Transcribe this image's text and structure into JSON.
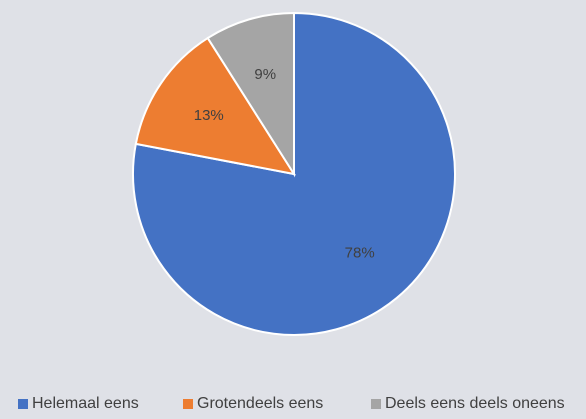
{
  "chart_data": {
    "type": "pie",
    "title": "",
    "categories": [
      "Helemaal eens",
      "Grotendeels eens",
      "Deels eens deels oneens"
    ],
    "values": [
      78,
      13,
      9
    ],
    "data_labels": [
      "78%",
      "13%",
      "9%"
    ],
    "colors": [
      "#4472c4",
      "#ed7d31",
      "#a5a5a5"
    ],
    "start": "12 o'clock",
    "direction": "clockwise",
    "legend_position": "bottom"
  }
}
